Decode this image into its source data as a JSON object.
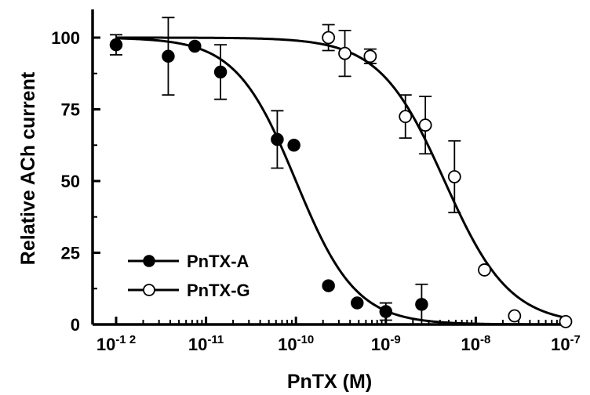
{
  "chart_data": {
    "type": "scatter",
    "xlabel": "PnTX (M)",
    "ylabel": "Relative ACh current",
    "xscale": "log",
    "xlim": [
      1e-12,
      1e-07
    ],
    "ylim": [
      0,
      110
    ],
    "x_ticks": [
      {
        "base": "10",
        "exp": "-1 2"
      },
      {
        "base": "10",
        "exp": "-11"
      },
      {
        "base": "10",
        "exp": "-10"
      },
      {
        "base": "10",
        "exp": "-9"
      },
      {
        "base": "10",
        "exp": "-8"
      },
      {
        "base": "10",
        "exp": "-7"
      }
    ],
    "y_ticks": [
      "0",
      "25",
      "50",
      "75",
      "100"
    ],
    "y_tick_values": [
      0,
      25,
      50,
      75,
      100
    ],
    "grid": false,
    "legend_position": "bottom-left",
    "series": [
      {
        "name": "PnTX-A",
        "marker": "filled-circle",
        "color": "#000000",
        "points": [
          {
            "x": 1e-12,
            "y": 97.5,
            "err": 3.5
          },
          {
            "x": 3.8e-12,
            "y": 93.5,
            "err": 13.5
          },
          {
            "x": 7.5e-12,
            "y": 97.0,
            "err": 0
          },
          {
            "x": 1.45e-11,
            "y": 88.0,
            "err": 9.5
          },
          {
            "x": 6.2e-11,
            "y": 64.5,
            "err": 10.0
          },
          {
            "x": 9.5e-11,
            "y": 62.5,
            "err": 0
          },
          {
            "x": 2.3e-10,
            "y": 13.5,
            "err": 0
          },
          {
            "x": 4.8e-10,
            "y": 7.5,
            "err": 0
          },
          {
            "x": 1e-09,
            "y": 4.5,
            "err": 3.0
          },
          {
            "x": 2.5e-09,
            "y": 7.0,
            "err": 7.0
          }
        ],
        "fit": {
          "top": 100,
          "bottom": 0,
          "ic50": 1e-10,
          "hill": 1.3
        }
      },
      {
        "name": "PnTX-G",
        "marker": "open-circle",
        "color": "#000000",
        "points": [
          {
            "x": 2.3e-10,
            "y": 100.0,
            "err": 4.5
          },
          {
            "x": 3.5e-10,
            "y": 94.5,
            "err": 8.0
          },
          {
            "x": 6.7e-10,
            "y": 93.5,
            "err": 2.5
          },
          {
            "x": 1.65e-09,
            "y": 72.5,
            "err": 7.5
          },
          {
            "x": 2.75e-09,
            "y": 69.5,
            "err": 10.0
          },
          {
            "x": 5.8e-09,
            "y": 51.5,
            "err": 12.5
          },
          {
            "x": 1.25e-08,
            "y": 19.0,
            "err": 0
          },
          {
            "x": 2.7e-08,
            "y": 3.0,
            "err": 0
          },
          {
            "x": 1e-07,
            "y": 1.0,
            "err": 0
          }
        ],
        "fit": {
          "top": 100,
          "bottom": 0,
          "ic50": 4.5e-09,
          "hill": 1.2
        }
      }
    ]
  }
}
